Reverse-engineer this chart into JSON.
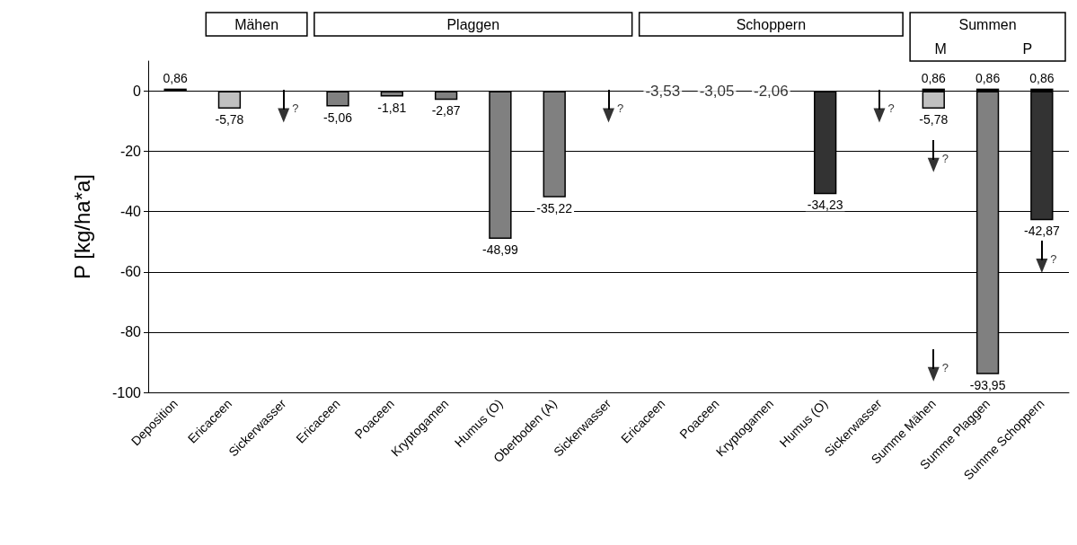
{
  "chart_data": {
    "type": "bar",
    "ylabel": "P [kg/ha*a]",
    "categories": [
      "Deposition",
      "Ericaceen",
      "Sickerwasser",
      "Ericaceen",
      "Poaceen",
      "Kryptogamen",
      "Humus (O)",
      "Oberboden (A)",
      "Sickerwasser",
      "Ericaceen",
      "Poaceen",
      "Kryptogamen",
      "Humus (O)",
      "Sickerwasser",
      "Summe Mähen",
      "Summe Plaggen",
      "Summe Schoppern"
    ],
    "stacked": true,
    "series": [
      {
        "values": [
          0.86,
          null,
          null,
          null,
          null,
          null,
          null,
          null,
          null,
          null,
          null,
          null,
          null,
          null,
          0.86,
          0.86,
          0.86
        ],
        "colors": [
          "#808080",
          null,
          null,
          null,
          null,
          null,
          null,
          null,
          null,
          null,
          null,
          null,
          null,
          null,
          "#c0c0c0",
          "#808080",
          "#333333"
        ],
        "value_labels": [
          "0,86",
          null,
          null,
          null,
          null,
          null,
          null,
          null,
          null,
          null,
          null,
          null,
          null,
          null,
          "0,86",
          "0,86",
          "0,86"
        ]
      },
      {
        "values": [
          null,
          -5.78,
          null,
          -5.06,
          -1.81,
          -2.87,
          -48.99,
          -35.22,
          null,
          null,
          null,
          null,
          -34.23,
          null,
          -5.78,
          -93.95,
          -42.87
        ],
        "colors": [
          null,
          "#c0c0c0",
          null,
          "#808080",
          "#808080",
          "#808080",
          "#808080",
          "#808080",
          null,
          null,
          null,
          null,
          "#333333",
          null,
          "#c0c0c0",
          "#808080",
          "#333333"
        ],
        "value_labels": [
          null,
          "-5,78",
          null,
          "-5,06",
          "-1,81",
          "-2,87",
          "-48,99",
          "-35,22",
          null,
          "-3,53",
          "-3,05",
          "-2,06",
          "-34,23",
          null,
          "-5,78",
          "-93,95",
          "-42,87"
        ]
      },
      {
        "type": "scatter",
        "marker": "triangle",
        "color": "#000000",
        "values": [
          null,
          null,
          -8,
          null,
          null,
          null,
          null,
          null,
          -8,
          null,
          null,
          null,
          null,
          -8,
          -24.5,
          null,
          -58
        ],
        "value_labels": [
          null,
          null,
          "?",
          null,
          null,
          null,
          null,
          null,
          "?",
          null,
          null,
          null,
          null,
          "?",
          "?",
          null,
          "?"
        ]
      },
      {
        "type": "scatter",
        "marker": "triangle",
        "color": "#000000",
        "values": [
          null,
          null,
          null,
          null,
          null,
          null,
          null,
          null,
          null,
          null,
          null,
          null,
          null,
          null,
          -94,
          null,
          null
        ],
        "value_labels": [
          null,
          null,
          null,
          null,
          null,
          null,
          null,
          null,
          null,
          null,
          null,
          null,
          null,
          null,
          "?",
          null,
          null
        ]
      }
    ],
    "ylim": [
      -100,
      10
    ],
    "yticks": [
      -100,
      -80,
      -60,
      -40,
      -20,
      0
    ],
    "grid": "y",
    "annotations": [
      "Mähen",
      "Plaggen",
      "Schoppern",
      "Summen",
      "M",
      "P"
    ]
  }
}
